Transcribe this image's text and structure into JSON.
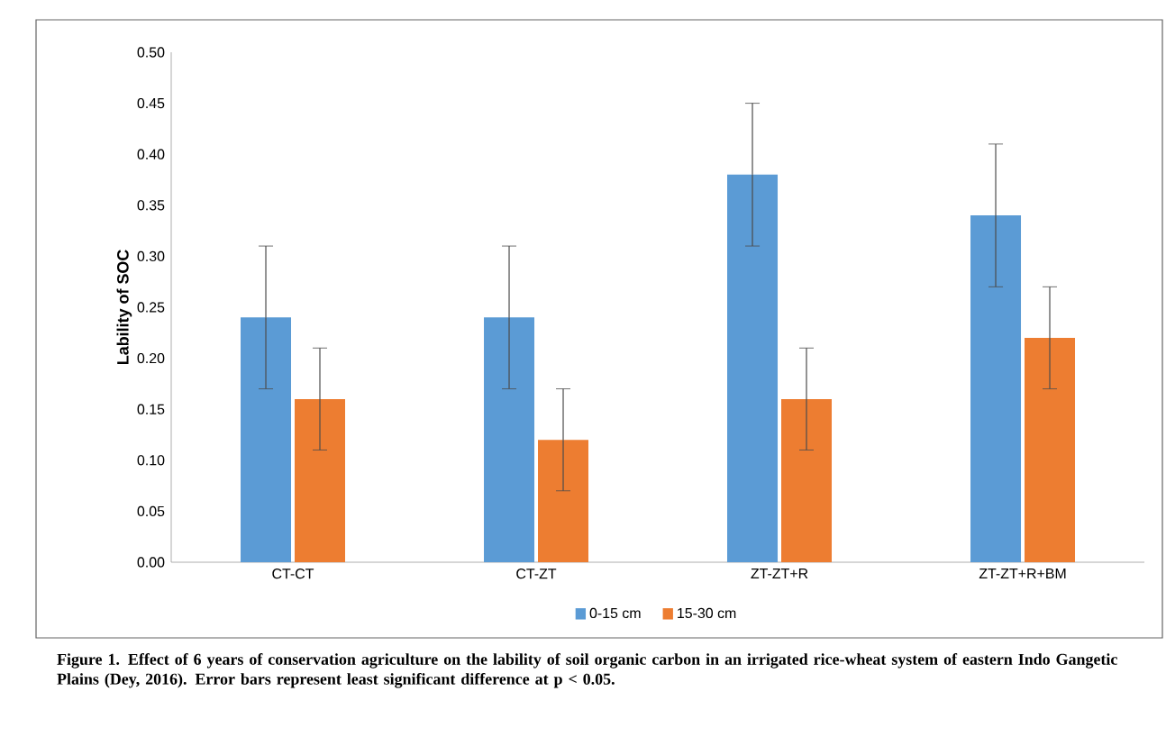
{
  "chart_data": {
    "type": "bar",
    "ylabel": "Lability of SOC",
    "categories": [
      "CT-CT",
      "CT-ZT",
      "ZT-ZT+R",
      "ZT-ZT+R+BM"
    ],
    "series": [
      {
        "name": "0-15 cm",
        "color": "#5b9bd5",
        "values": [
          0.24,
          0.24,
          0.38,
          0.34
        ],
        "errors": [
          0.07,
          0.07,
          0.07,
          0.07
        ]
      },
      {
        "name": "15-30 cm",
        "color": "#ed7d31",
        "values": [
          0.16,
          0.12,
          0.16,
          0.22
        ],
        "errors": [
          0.05,
          0.05,
          0.05,
          0.05
        ]
      }
    ],
    "ylim": [
      0,
      0.5
    ],
    "yticks": [
      {
        "value": 0,
        "label": "0.00"
      },
      {
        "value": 0.05,
        "label": "0.05"
      },
      {
        "value": 0.1,
        "label": "0.10"
      },
      {
        "value": 0.15,
        "label": "0.15"
      },
      {
        "value": 0.2,
        "label": "0.20"
      },
      {
        "value": 0.25,
        "label": "0.25"
      },
      {
        "value": 0.3,
        "label": "0.30"
      },
      {
        "value": 0.35,
        "label": "0.35"
      },
      {
        "value": 0.4,
        "label": "0.40"
      },
      {
        "value": 0.45,
        "label": "0.45"
      },
      {
        "value": 0.5,
        "label": "0.50"
      }
    ],
    "grid": false,
    "legend": "bottom",
    "annotations": [
      "Figure 1. Effect of 6 years of conservation agriculture on the lability of soil organic carbon in an irrigated rice-wheat system of eastern Indo Gangetic Plains (Dey, 2016). Error bars represent least significant difference at p < 0.05."
    ]
  }
}
